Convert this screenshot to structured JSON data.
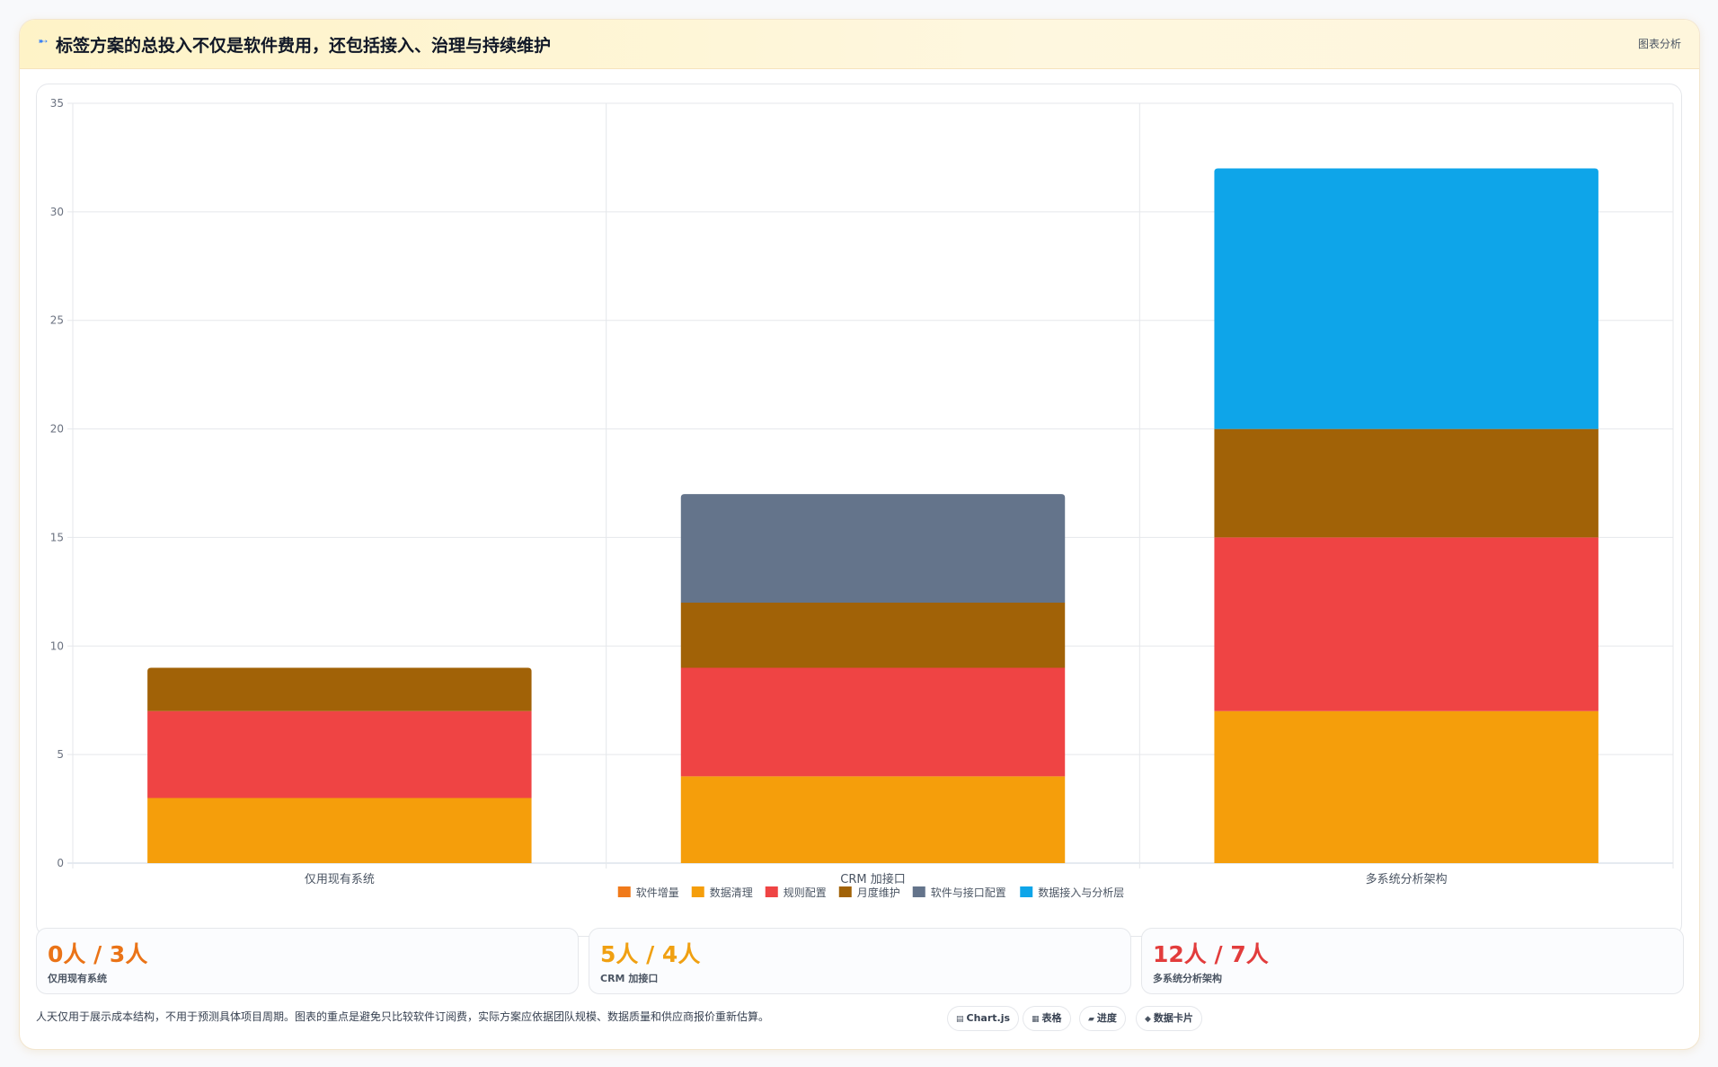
{
  "header": {
    "icon": "sparkle-icon",
    "title": "标签方案的总投入不仅是软件费用，还包括接入、治理与持续维护",
    "tag": "图表分析"
  },
  "chart_data": {
    "type": "bar",
    "stacked": true,
    "categories": [
      "仅用现有系统",
      "CRM 加接口",
      "多系统分析架构"
    ],
    "series": [
      {
        "name": "软件增量",
        "color": "#f07a1a",
        "values": [
          0,
          0,
          0
        ]
      },
      {
        "name": "数据清理",
        "color": "#f59e0b",
        "values": [
          3,
          4,
          7
        ]
      },
      {
        "name": "规则配置",
        "color": "#ef4444",
        "values": [
          4,
          5,
          8
        ]
      },
      {
        "name": "月度维护",
        "color": "#a16207",
        "values": [
          2,
          3,
          5
        ]
      },
      {
        "name": "软件与接口配置",
        "color": "#64748b",
        "values": [
          0,
          5,
          0
        ]
      },
      {
        "name": "数据接入与分析层",
        "color": "#0ea5e9",
        "values": [
          0,
          0,
          12
        ]
      }
    ],
    "y_ticks": [
      "0",
      "5",
      "10",
      "15",
      "20",
      "25",
      "30",
      "35"
    ],
    "ylim": [
      0,
      35
    ],
    "grid": true,
    "legend_position": "bottom"
  },
  "stats": [
    {
      "value": "0人 / 3人",
      "label": "仅用现有系统",
      "color": "#ea7317"
    },
    {
      "value": "5人 / 4人",
      "label": "CRM 加接口",
      "color": "#f0a012"
    },
    {
      "value": "12人 / 7人",
      "label": "多系统分析架构",
      "color": "#e23c3c"
    }
  ],
  "footnote": "人天仅用于展示成本结构，不用于预测具体项目周期。图表的重点是避免只比较软件订阅费，实际方案应依据团队规模、数据质量和供应商报价重新估算。",
  "pills": [
    {
      "icon": "chart-icon",
      "glyph": "▤",
      "label": "Chart.js"
    },
    {
      "icon": "table-icon",
      "glyph": "▦",
      "label": "表格"
    },
    {
      "icon": "progress-icon",
      "glyph": "▰",
      "label": "进度"
    },
    {
      "icon": "card-icon",
      "glyph": "◆",
      "label": "数据卡片"
    }
  ]
}
